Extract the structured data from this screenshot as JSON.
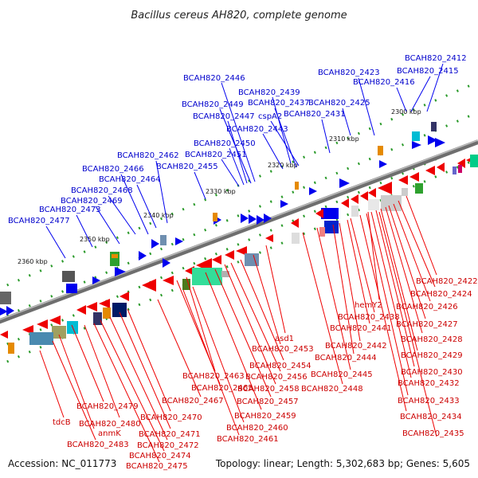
{
  "title": "Bacillus cereus AH820, complete genome",
  "footer": {
    "accession": "Accession: NC_011773",
    "topology": "Topology: linear; Length: 5,302,683 bp; Genes: 5,605"
  },
  "colors": {
    "forward": "#0000ee",
    "reverse": "#ee0000",
    "backbone": "#707070",
    "dots": "#2a9a2a"
  },
  "ticks": [
    "2300 kbp",
    "2310 kbp",
    "2320 kbp",
    "2330 kbp",
    "2340 kbp",
    "2350 kbp",
    "2360 kbp"
  ],
  "forward_labels": [
    "BCAH820_2412",
    "BCAH820_2415",
    "BCAH820_2416",
    "BCAH820_2423",
    "BCAH820_2446",
    "BCAH820_2439",
    "BCAH820_2449",
    "BCAH820_2437",
    "BCAH820_2425",
    "BCAH820_2447",
    "cspA2",
    "BCAH820_2431",
    "BCAH820_2443",
    "BCAH820_2450",
    "BCAH820_2462",
    "BCAH820_2451",
    "BCAH820_2466",
    "BCAH820_2455",
    "BCAH820_2464",
    "BCAH820_2468",
    "BCAH820_2469",
    "BCAH820_2473",
    "BCAH820_2477"
  ],
  "reverse_labels": [
    "BCAH820_2422",
    "BCAH820_2424",
    "hemY2",
    "BCAH820_2426",
    "BCAH820_2438",
    "BCAH820_2441",
    "BCAH820_2427",
    "asd1",
    "BCAH820_2428",
    "BCAH820_2442",
    "BCAH820_2453",
    "BCAH820_2444",
    "BCAH820_2429",
    "BCAH820_2454",
    "BCAH820_2430",
    "BCAH820_2463",
    "BCAH820_2445",
    "BCAH820_2456",
    "BCAH820_2432",
    "BCAH820_2465",
    "BCAH820_2458",
    "BCAH820_2448",
    "BCAH820_2479",
    "BCAH820_2467",
    "BCAH820_2457",
    "BCAH820_2433",
    "tdcB",
    "BCAH820_2480",
    "BCAH820_2470",
    "BCAH820_2459",
    "BCAH820_2434",
    "anmK",
    "BCAH820_2471",
    "BCAH820_2460",
    "BCAH820_2483",
    "BCAH820_2472",
    "BCAH820_2461",
    "BCAH820_2435",
    "BCAH820_2474",
    "BCAH820_2475"
  ]
}
